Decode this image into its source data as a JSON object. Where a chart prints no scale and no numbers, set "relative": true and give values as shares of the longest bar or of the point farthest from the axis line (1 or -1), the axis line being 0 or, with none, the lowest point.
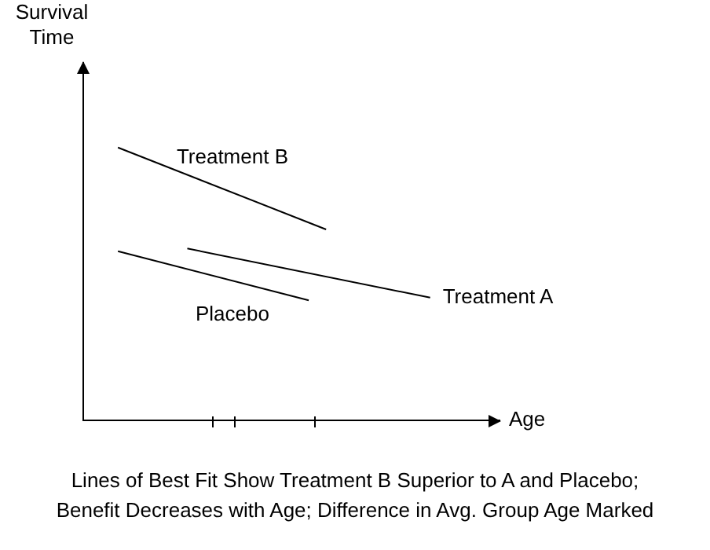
{
  "chart_data": {
    "type": "line",
    "relative": true,
    "xlabel": "Age",
    "ylabel": "Survival\nTime",
    "grid": false,
    "legend": false,
    "marker": "none",
    "line_style": "solid",
    "categories": [
      null,
      null,
      null,
      null,
      null,
      null,
      null,
      null,
      null,
      null,
      null,
      null,
      null,
      null,
      null,
      null,
      null,
      null,
      null,
      null,
      null,
      null,
      null,
      null,
      null
    ],
    "series": [
      {
        "name": "Treatment B",
        "color": "#000000",
        "values": [
          null,
          null,
          1,
          null,
          null,
          null,
          null,
          null,
          null,
          null,
          null,
          null,
          null,
          null,
          0.7,
          null,
          null,
          null,
          null,
          null,
          null,
          null,
          null,
          null,
          null
        ]
      },
      {
        "name": "Treatment A",
        "color": "#000000",
        "values": [
          null,
          null,
          null,
          null,
          null,
          null,
          0.63,
          null,
          null,
          null,
          null,
          null,
          null,
          null,
          null,
          null,
          null,
          null,
          null,
          null,
          0.45,
          null,
          null,
          null,
          null
        ]
      },
      {
        "name": "Placebo",
        "color": "#000000",
        "values": [
          null,
          null,
          0.62,
          null,
          null,
          null,
          null,
          null,
          null,
          null,
          null,
          null,
          null,
          0.44,
          null,
          null,
          null,
          null,
          null,
          null,
          null,
          null,
          null,
          null,
          null
        ]
      }
    ],
    "annotations": [
      "Lines of Best Fit Show Treatment B Superior to A and Placebo;",
      "Benefit Decreases with Age; Difference in Avg. Group Age Marked"
    ]
  }
}
